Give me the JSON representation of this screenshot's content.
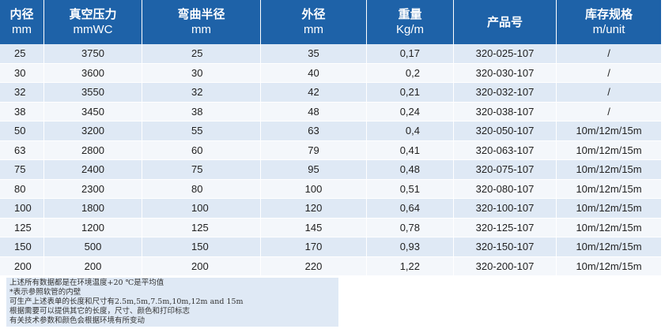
{
  "table": {
    "headers": [
      {
        "label": "内径",
        "unit": "mm"
      },
      {
        "label": "真空压力",
        "unit": "mmWC"
      },
      {
        "label": "弯曲半径",
        "unit": "mm"
      },
      {
        "label": "外径",
        "unit": "mm"
      },
      {
        "label": "重量",
        "unit": "Kg/m"
      },
      {
        "label": "产品号",
        "unit": ""
      },
      {
        "label": "库存规格",
        "unit": "m/unit"
      }
    ],
    "rows": [
      [
        "25",
        "3750",
        "25",
        "35",
        "0,17",
        "320-025-107",
        "/"
      ],
      [
        "30",
        "3600",
        "30",
        "40",
        "0,2",
        "320-030-107",
        "/"
      ],
      [
        "32",
        "3550",
        "32",
        "42",
        "0,21",
        "320-032-107",
        "/"
      ],
      [
        "38",
        "3450",
        "38",
        "48",
        "0,24",
        "320-038-107",
        "/"
      ],
      [
        "50",
        "3200",
        "55",
        "63",
        "0,4",
        "320-050-107",
        "10m/12m/15m"
      ],
      [
        "63",
        "2800",
        "60",
        "79",
        "0,41",
        "320-063-107",
        "10m/12m/15m"
      ],
      [
        "75",
        "2400",
        "75",
        "95",
        "0,48",
        "320-075-107",
        "10m/12m/15m"
      ],
      [
        "80",
        "2300",
        "80",
        "100",
        "0,51",
        "320-080-107",
        "10m/12m/15m"
      ],
      [
        "100",
        "1800",
        "100",
        "120",
        "0,64",
        "320-100-107",
        "10m/12m/15m"
      ],
      [
        "125",
        "1200",
        "125",
        "145",
        "0,78",
        "320-125-107",
        "10m/12m/15m"
      ],
      [
        "150",
        "500",
        "150",
        "170",
        "0,93",
        "320-150-107",
        "10m/12m/15m"
      ],
      [
        "200",
        "200",
        "200",
        "220",
        "1,22",
        "320-200-107",
        "10m/12m/15m"
      ]
    ]
  },
  "notes": [
    "上述所有数据都是在环境温度+20 ℃是平均值",
    "*表示参照软管的内壁",
    "可生产上述表单的长度和尺寸有2.5m,5m,7.5m,10m,12m and 15m",
    "根据需要可以提供其它的长度，尺寸、颜色和打印标志",
    "有关技术参数和颜色会根据环境有所变动"
  ]
}
